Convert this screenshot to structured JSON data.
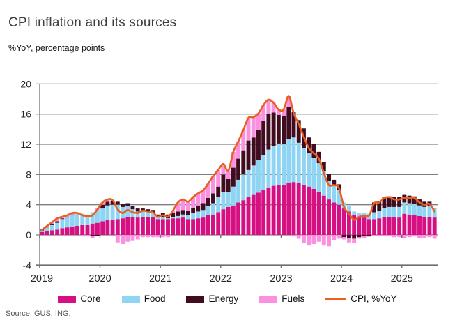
{
  "header": {
    "title": "CPI inflation and its sources",
    "subtitle": "%YoY, percentage points"
  },
  "source": "Source: GUS, ING.",
  "legend": {
    "items": [
      {
        "label": "Core",
        "color": "#d60f82",
        "kind": "bar"
      },
      {
        "label": "Food",
        "color": "#8fd4f2",
        "kind": "bar"
      },
      {
        "label": "Energy",
        "color": "#400c20",
        "kind": "bar"
      },
      {
        "label": "Fuels",
        "color": "#fb8fe0",
        "kind": "bar"
      },
      {
        "label": "CPI, %YoY",
        "color": "#eb5e1f",
        "kind": "line"
      }
    ]
  },
  "chart_data": {
    "type": "bar",
    "stacked": true,
    "title": "CPI inflation and its sources",
    "subtitle": "%YoY, percentage points",
    "ylabel": "",
    "xlabel": "",
    "ylim": [
      -4,
      20
    ],
    "yticks": [
      -4,
      0,
      4,
      8,
      12,
      16,
      20
    ],
    "grid": true,
    "legend_position": "bottom",
    "x_year_labels": [
      "2019",
      "2020",
      "2021",
      "2022",
      "2023",
      "2024",
      "2025"
    ],
    "categories": [
      "2019-01",
      "2019-02",
      "2019-03",
      "2019-04",
      "2019-05",
      "2019-06",
      "2019-07",
      "2019-08",
      "2019-09",
      "2019-10",
      "2019-11",
      "2019-12",
      "2020-01",
      "2020-02",
      "2020-03",
      "2020-04",
      "2020-05",
      "2020-06",
      "2020-07",
      "2020-08",
      "2020-09",
      "2020-10",
      "2020-11",
      "2020-12",
      "2021-01",
      "2021-02",
      "2021-03",
      "2021-04",
      "2021-05",
      "2021-06",
      "2021-07",
      "2021-08",
      "2021-09",
      "2021-10",
      "2021-11",
      "2021-12",
      "2022-01",
      "2022-02",
      "2022-03",
      "2022-04",
      "2022-05",
      "2022-06",
      "2022-07",
      "2022-08",
      "2022-09",
      "2022-10",
      "2022-11",
      "2022-12",
      "2023-01",
      "2023-02",
      "2023-03",
      "2023-04",
      "2023-05",
      "2023-06",
      "2023-07",
      "2023-08",
      "2023-09",
      "2023-10",
      "2023-11",
      "2023-12",
      "2024-01",
      "2024-02",
      "2024-03",
      "2024-04",
      "2024-05",
      "2024-06",
      "2024-07",
      "2024-08",
      "2024-09",
      "2024-10",
      "2024-11",
      "2024-12",
      "2025-01",
      "2025-02",
      "2025-03",
      "2025-04",
      "2025-05",
      "2025-06",
      "2025-07"
    ],
    "series": [
      {
        "name": "Core",
        "color": "#d60f82",
        "values": [
          0.4,
          0.5,
          0.6,
          0.7,
          0.9,
          1.0,
          1.1,
          1.2,
          1.3,
          1.3,
          1.5,
          1.6,
          1.8,
          2.0,
          2.0,
          2.1,
          2.2,
          2.4,
          2.4,
          2.3,
          2.4,
          2.4,
          2.4,
          2.1,
          2.1,
          2.1,
          2.2,
          2.2,
          2.3,
          2.1,
          2.1,
          2.2,
          2.3,
          2.6,
          2.7,
          3.0,
          3.4,
          3.7,
          3.9,
          4.3,
          4.6,
          5.0,
          5.3,
          5.6,
          6.0,
          6.3,
          6.5,
          6.6,
          6.6,
          6.9,
          7.0,
          6.9,
          6.6,
          6.4,
          6.1,
          5.7,
          5.2,
          4.7,
          4.3,
          4.0,
          3.5,
          3.1,
          2.6,
          2.4,
          2.3,
          2.1,
          2.1,
          2.2,
          2.4,
          2.4,
          2.4,
          2.3,
          2.8,
          2.7,
          2.6,
          2.5,
          2.4,
          2.4,
          2.3
        ]
      },
      {
        "name": "Food",
        "color": "#8fd4f2",
        "values": [
          0.2,
          0.5,
          0.7,
          0.9,
          1.2,
          1.3,
          1.5,
          1.6,
          1.5,
          1.4,
          1.5,
          1.7,
          1.7,
          1.9,
          2.0,
          1.9,
          1.5,
          1.4,
          1.0,
          0.8,
          0.7,
          0.6,
          0.5,
          0.2,
          0.2,
          0.1,
          0.2,
          0.3,
          0.4,
          0.5,
          0.8,
          0.9,
          1.0,
          1.2,
          1.5,
          2.0,
          2.3,
          2.0,
          2.5,
          3.0,
          3.4,
          3.6,
          3.9,
          4.3,
          4.6,
          5.0,
          5.3,
          5.5,
          5.4,
          5.8,
          5.9,
          5.3,
          4.9,
          4.4,
          4.1,
          3.8,
          3.2,
          2.5,
          2.2,
          2.0,
          0.8,
          0.7,
          0.5,
          0.5,
          0.6,
          0.7,
          0.9,
          1.0,
          1.2,
          1.3,
          1.3,
          1.4,
          1.5,
          1.5,
          1.5,
          1.4,
          1.3,
          1.4,
          1.2
        ]
      },
      {
        "name": "Energy",
        "color": "#400c20",
        "values": [
          0.1,
          0.1,
          0.2,
          0.2,
          0.1,
          0.1,
          0.1,
          0.0,
          0.0,
          0.0,
          -0.1,
          -0.1,
          0.5,
          0.5,
          0.5,
          0.4,
          0.4,
          0.4,
          0.4,
          0.4,
          0.4,
          0.4,
          0.4,
          0.4,
          0.6,
          0.5,
          0.5,
          0.6,
          0.6,
          0.6,
          0.7,
          0.8,
          0.9,
          1.1,
          1.3,
          1.4,
          2.3,
          1.7,
          2.5,
          2.8,
          3.2,
          3.9,
          3.7,
          4.0,
          4.5,
          4.7,
          4.4,
          3.8,
          3.7,
          4.2,
          3.4,
          3.0,
          2.6,
          2.1,
          1.8,
          1.5,
          1.2,
          0.9,
          0.8,
          0.7,
          -0.3,
          -0.4,
          -0.5,
          -0.3,
          -0.2,
          -0.2,
          1.3,
          1.3,
          1.4,
          1.4,
          1.3,
          1.3,
          1.0,
          1.0,
          1.0,
          0.8,
          0.7,
          0.6,
          0.1
        ]
      },
      {
        "name": "Fuels",
        "color": "#fb8fe0",
        "values": [
          0.0,
          0.1,
          0.2,
          0.4,
          0.2,
          0.2,
          0.2,
          0.1,
          -0.2,
          -0.2,
          -0.3,
          0.2,
          0.3,
          0.3,
          0.1,
          -1.0,
          -1.2,
          -0.9,
          -0.8,
          -0.6,
          -0.3,
          -0.3,
          -0.3,
          -0.3,
          -0.3,
          -0.3,
          0.3,
          1.2,
          1.4,
          1.2,
          1.4,
          1.6,
          1.7,
          1.9,
          2.3,
          2.2,
          1.4,
          1.1,
          2.1,
          2.3,
          2.7,
          3.0,
          2.7,
          2.2,
          2.1,
          1.9,
          1.3,
          0.7,
          0.9,
          1.5,
          -0.2,
          -0.5,
          -1.1,
          -1.4,
          -1.2,
          -0.9,
          -1.4,
          -1.5,
          -0.7,
          -0.5,
          -0.3,
          -0.6,
          -0.6,
          -0.2,
          -0.2,
          0.0,
          -0.1,
          -0.2,
          -0.1,
          -0.1,
          -0.3,
          -0.3,
          -0.4,
          -0.3,
          -0.2,
          -0.4,
          -0.4,
          -0.3,
          -0.5
        ]
      }
    ],
    "line_series": {
      "name": "CPI, %YoY",
      "color": "#eb5e1f",
      "values": [
        0.7,
        1.2,
        1.7,
        2.2,
        2.4,
        2.6,
        2.9,
        2.9,
        2.6,
        2.5,
        2.6,
        3.4,
        4.3,
        4.7,
        4.6,
        3.4,
        2.9,
        3.3,
        3.0,
        2.9,
        3.2,
        3.1,
        3.0,
        2.4,
        2.6,
        2.4,
        3.2,
        4.3,
        4.7,
        4.4,
        5.0,
        5.5,
        5.9,
        6.8,
        7.8,
        8.6,
        9.4,
        8.5,
        11.0,
        12.4,
        13.9,
        15.5,
        15.6,
        16.1,
        17.2,
        17.9,
        17.5,
        16.6,
        16.6,
        18.4,
        16.1,
        14.7,
        13.0,
        11.5,
        10.8,
        10.1,
        8.2,
        6.6,
        6.6,
        6.2,
        3.7,
        2.8,
        2.0,
        2.4,
        2.5,
        2.6,
        4.2,
        4.3,
        4.9,
        5.0,
        4.7,
        4.7,
        4.9,
        4.9,
        4.9,
        4.3,
        4.0,
        4.1,
        3.1
      ]
    },
    "colors": {
      "grid": "#7f7f7f",
      "axis": "#6e6e6e",
      "tick_text": "#262626"
    }
  }
}
